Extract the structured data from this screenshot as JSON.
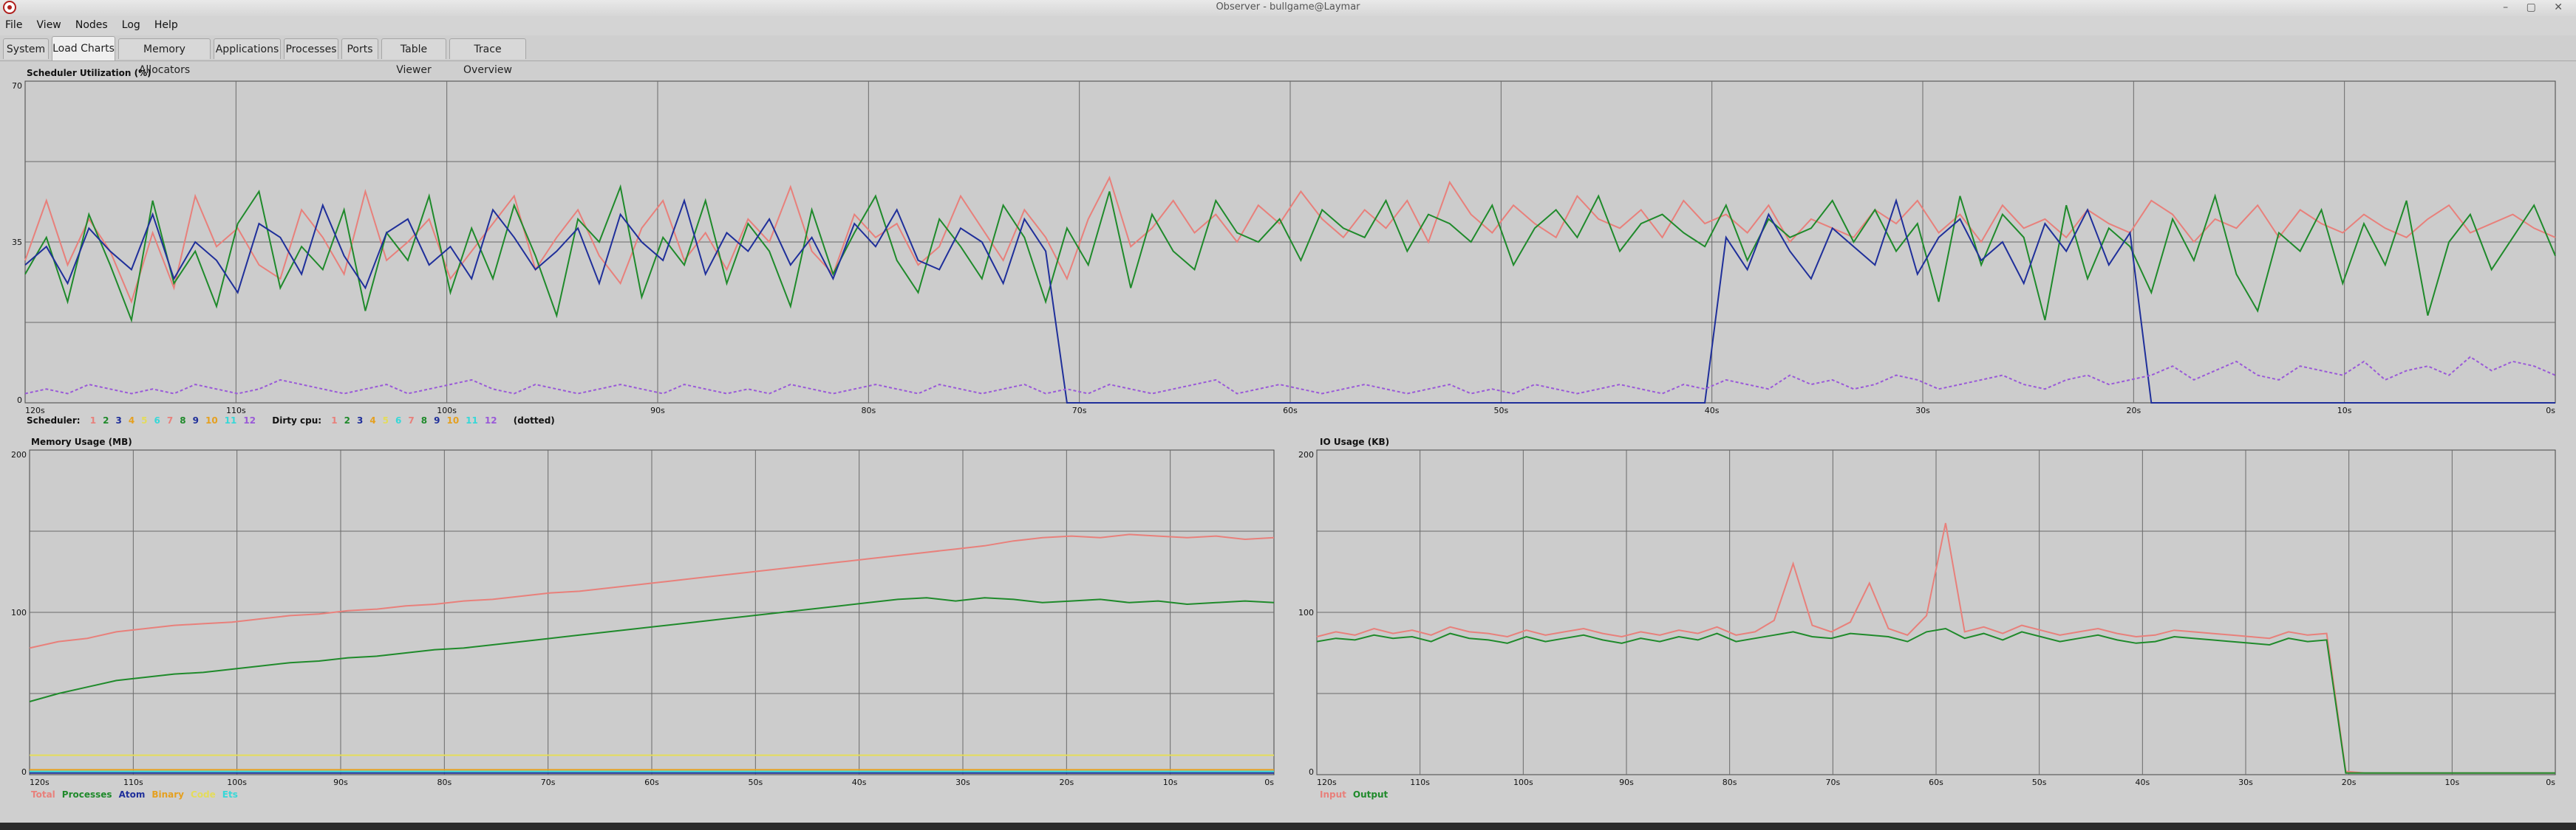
{
  "window": {
    "title": "Observer - bullgame@Laymar",
    "controls": "– ▢ ✕"
  },
  "menu": [
    "File",
    "View",
    "Nodes",
    "Log",
    "Help"
  ],
  "tabs": [
    "System",
    "Load Charts",
    "Memory Allocators",
    "Applications",
    "Processes",
    "Ports",
    "Table Viewer",
    "Trace Overview"
  ],
  "active_tab": "Load Charts",
  "colors": {
    "red": "#e8807b",
    "green": "#1f8a2b",
    "blue": "#1f2f9a",
    "orange": "#e5a020",
    "yellow": "#e4dc5a",
    "cyan": "#37d8d8",
    "grid": "#555555",
    "plot_bg": "#cccccc"
  },
  "scheduler_chart": {
    "chart_data": {
      "type": "line",
      "title": "Scheduler Utilization (%)",
      "ylim": [
        0,
        70
      ],
      "y_ticks": [
        "70",
        "35",
        "0"
      ],
      "x_ticks": [
        "120s",
        "110s",
        "100s",
        "90s",
        "80s",
        "70s",
        "60s",
        "50s",
        "40s",
        "30s",
        "20s",
        "10s",
        "0s"
      ],
      "xlim": [
        -120,
        0
      ],
      "series": [
        {
          "name": "1",
          "color": "#e8807b",
          "values": [
            31,
            44,
            30,
            40,
            33,
            22,
            37,
            25,
            45,
            34,
            38,
            30,
            27,
            42,
            36,
            28,
            46,
            31,
            35,
            40,
            27,
            33,
            39,
            45,
            29,
            36,
            42,
            32,
            26,
            38,
            44,
            31,
            37,
            29,
            40,
            35,
            47,
            33,
            28,
            41,
            36,
            39,
            30,
            34,
            45,
            38,
            31,
            42,
            36,
            27,
            40,
            49,
            34,
            38,
            44,
            37,
            41,
            35,
            43,
            39,
            46,
            40,
            36,
            42,
            38,
            44,
            35,
            48,
            41,
            37,
            43,
            39,
            36,
            45,
            40,
            38,
            42,
            36,
            44,
            39,
            41,
            37,
            43,
            35,
            40,
            38,
            36,
            42,
            39,
            44,
            37,
            41,
            35,
            43,
            38,
            40,
            36,
            42,
            39,
            37,
            44,
            41,
            35,
            40,
            38,
            43,
            36,
            42,
            39,
            37,
            41,
            38,
            36,
            40,
            43,
            37,
            39,
            41,
            38,
            36
          ]
        },
        {
          "name": "2",
          "color": "#1f8a2b",
          "values": [
            28,
            36,
            22,
            41,
            30,
            18,
            44,
            26,
            33,
            21,
            39,
            46,
            25,
            34,
            29,
            42,
            20,
            37,
            31,
            45,
            24,
            38,
            27,
            43,
            32,
            19,
            40,
            35,
            47,
            23,
            36,
            30,
            44,
            26,
            39,
            33,
            21,
            42,
            28,
            37,
            45,
            31,
            24,
            40,
            34,
            27,
            43,
            36,
            22,
            38,
            30,
            46,
            25,
            41,
            33,
            29,
            44,
            37,
            35,
            40,
            31,
            42,
            38,
            36,
            44,
            33,
            41,
            39,
            35,
            43,
            30,
            38,
            42,
            36,
            45,
            33,
            39,
            41,
            37,
            34,
            43,
            31,
            40,
            36,
            38,
            44,
            35,
            42,
            33,
            39,
            22,
            45,
            30,
            41,
            36,
            18,
            43,
            27,
            38,
            34,
            24,
            40,
            31,
            45,
            28,
            20,
            37,
            33,
            42,
            26,
            39,
            30,
            44,
            19,
            35,
            41,
            29,
            36,
            43,
            32
          ]
        },
        {
          "name": "3",
          "color": "#1f2f9a",
          "values": [
            30,
            34,
            26,
            38,
            33,
            29,
            41,
            27,
            35,
            31,
            24,
            39,
            36,
            28,
            43,
            32,
            25,
            37,
            40,
            30,
            34,
            27,
            42,
            36,
            29,
            33,
            38,
            26,
            41,
            35,
            31,
            44,
            28,
            37,
            33,
            40,
            30,
            36,
            27,
            39,
            34,
            42,
            31,
            29,
            38,
            35,
            26,
            40,
            33,
            0,
            0,
            0,
            0,
            0,
            0,
            0,
            0,
            0,
            0,
            0,
            0,
            0,
            0,
            0,
            0,
            0,
            0,
            0,
            0,
            0,
            0,
            0,
            0,
            0,
            0,
            0,
            0,
            0,
            0,
            0,
            36,
            29,
            41,
            33,
            27,
            38,
            34,
            30,
            44,
            28,
            36,
            40,
            31,
            35,
            26,
            39,
            33,
            42,
            30,
            37,
            0,
            0,
            0,
            0,
            0,
            0,
            0,
            0,
            0,
            0,
            0,
            0,
            0,
            0,
            0,
            0,
            0,
            0,
            0,
            0
          ]
        },
        {
          "name": "12",
          "color": "#9a5ad8",
          "values": [
            2,
            3,
            2,
            4,
            3,
            2,
            3,
            2,
            4,
            3,
            2,
            3,
            5,
            4,
            3,
            2,
            3,
            4,
            2,
            3,
            4,
            5,
            3,
            2,
            4,
            3,
            2,
            3,
            4,
            3,
            2,
            4,
            3,
            2,
            3,
            2,
            4,
            3,
            2,
            3,
            4,
            3,
            2,
            4,
            3,
            2,
            3,
            4,
            2,
            3,
            2,
            4,
            3,
            2,
            3,
            4,
            5,
            2,
            3,
            4,
            3,
            2,
            3,
            4,
            3,
            2,
            3,
            4,
            2,
            3,
            2,
            4,
            3,
            2,
            3,
            4,
            3,
            2,
            4,
            3,
            5,
            4,
            3,
            6,
            4,
            5,
            3,
            4,
            6,
            5,
            3,
            4,
            5,
            6,
            4,
            3,
            5,
            6,
            4,
            5,
            6,
            8,
            5,
            7,
            9,
            6,
            5,
            8,
            7,
            6,
            9,
            5,
            7,
            8,
            6,
            10,
            7,
            9,
            8,
            6
          ]
        }
      ]
    },
    "legend": {
      "scheduler_label": "Scheduler:",
      "scheduler_items": [
        {
          "label": "1",
          "color": "#e8807b"
        },
        {
          "label": "2",
          "color": "#1f8a2b"
        },
        {
          "label": "3",
          "color": "#1f2f9a"
        },
        {
          "label": "4",
          "color": "#e5a020"
        },
        {
          "label": "5",
          "color": "#e4dc5a"
        },
        {
          "label": "6",
          "color": "#37d8d8"
        },
        {
          "label": "7",
          "color": "#e8807b"
        },
        {
          "label": "8",
          "color": "#1f8a2b"
        },
        {
          "label": "9",
          "color": "#1f2f9a"
        },
        {
          "label": "10",
          "color": "#e5a020"
        },
        {
          "label": "11",
          "color": "#37d8d8"
        },
        {
          "label": "12",
          "color": "#9a5ad8"
        }
      ],
      "dirty_label": "Dirty cpu:",
      "dirty_items": [
        {
          "label": "1",
          "color": "#e8807b"
        },
        {
          "label": "2",
          "color": "#1f8a2b"
        },
        {
          "label": "3",
          "color": "#1f2f9a"
        },
        {
          "label": "4",
          "color": "#e5a020"
        },
        {
          "label": "5",
          "color": "#e4dc5a"
        },
        {
          "label": "6",
          "color": "#37d8d8"
        },
        {
          "label": "7",
          "color": "#e8807b"
        },
        {
          "label": "8",
          "color": "#1f8a2b"
        },
        {
          "label": "9",
          "color": "#1f2f9a"
        },
        {
          "label": "10",
          "color": "#e5a020"
        },
        {
          "label": "11",
          "color": "#37d8d8"
        },
        {
          "label": "12",
          "color": "#9a5ad8"
        }
      ],
      "dotted_note": "(dotted)"
    }
  },
  "memory_chart": {
    "chart_data": {
      "type": "line",
      "title": "Memory Usage (MB)",
      "ylim": [
        0,
        200
      ],
      "y_ticks": [
        "200",
        "100",
        "0"
      ],
      "x_ticks": [
        "120s",
        "110s",
        "100s",
        "90s",
        "80s",
        "70s",
        "60s",
        "50s",
        "40s",
        "30s",
        "20s",
        "10s",
        "0s"
      ],
      "xlim": [
        -120,
        0
      ],
      "series": [
        {
          "name": "Total",
          "color": "#e8807b",
          "values": [
            78,
            82,
            84,
            88,
            90,
            92,
            93,
            94,
            96,
            98,
            99,
            101,
            102,
            104,
            105,
            107,
            108,
            110,
            112,
            113,
            115,
            117,
            119,
            121,
            123,
            125,
            127,
            129,
            131,
            133,
            135,
            137,
            139,
            141,
            144,
            146,
            147,
            146,
            148,
            147,
            146,
            147,
            145,
            146
          ]
        },
        {
          "name": "Processes",
          "color": "#1f8a2b",
          "values": [
            45,
            50,
            54,
            58,
            60,
            62,
            63,
            65,
            67,
            69,
            70,
            72,
            73,
            75,
            77,
            78,
            80,
            82,
            84,
            86,
            88,
            90,
            92,
            94,
            96,
            98,
            100,
            102,
            104,
            106,
            108,
            109,
            107,
            109,
            108,
            106,
            107,
            108,
            106,
            107,
            105,
            106,
            107,
            106
          ]
        },
        {
          "name": "Atom",
          "color": "#1f2f9a",
          "values": [
            1,
            1,
            1,
            1,
            1,
            1,
            1,
            1,
            1,
            1,
            1,
            1,
            1,
            1,
            1,
            1,
            1,
            1,
            1,
            1,
            1,
            1,
            1,
            1,
            1,
            1,
            1,
            1,
            1,
            1,
            1,
            1,
            1,
            1,
            1,
            1,
            1,
            1,
            1,
            1,
            1,
            1,
            1,
            1
          ]
        },
        {
          "name": "Binary",
          "color": "#e5a020",
          "values": [
            3,
            3,
            3,
            3,
            3,
            3,
            3,
            3,
            3,
            3,
            3,
            3,
            3,
            3,
            3,
            3,
            3,
            3,
            3,
            3,
            3,
            3,
            3,
            3,
            3,
            3,
            3,
            3,
            3,
            3,
            3,
            3,
            3,
            3,
            3,
            3,
            3,
            3,
            3,
            3,
            3,
            3,
            3,
            3
          ]
        },
        {
          "name": "Code",
          "color": "#e4dc5a",
          "values": [
            12,
            12,
            12,
            12,
            12,
            12,
            12,
            12,
            12,
            12,
            12,
            12,
            12,
            12,
            12,
            12,
            12,
            12,
            12,
            12,
            12,
            12,
            12,
            12,
            12,
            12,
            12,
            12,
            12,
            12,
            12,
            12,
            12,
            12,
            12,
            12,
            12,
            12,
            12,
            12,
            12,
            12,
            12,
            12
          ]
        },
        {
          "name": "Ets",
          "color": "#37d8d8",
          "values": [
            2,
            2,
            2,
            2,
            2,
            2,
            2,
            2,
            2,
            2,
            2,
            2,
            2,
            2,
            2,
            2,
            2,
            2,
            2,
            2,
            2,
            2,
            2,
            2,
            2,
            2,
            2,
            2,
            2,
            2,
            2,
            2,
            2,
            2,
            2,
            2,
            2,
            2,
            2,
            2,
            2,
            2,
            2,
            2
          ]
        }
      ]
    },
    "legend": [
      {
        "label": "Total",
        "color": "#e8807b"
      },
      {
        "label": "Processes",
        "color": "#1f8a2b"
      },
      {
        "label": "Atom",
        "color": "#1f2f9a"
      },
      {
        "label": "Binary",
        "color": "#e5a020"
      },
      {
        "label": "Code",
        "color": "#e4dc5a"
      },
      {
        "label": "Ets",
        "color": "#37d8d8"
      }
    ]
  },
  "io_chart": {
    "chart_data": {
      "type": "line",
      "title": "IO Usage (KB)",
      "ylim": [
        0,
        200
      ],
      "y_ticks": [
        "200",
        "100",
        "0"
      ],
      "x_ticks": [
        "120s",
        "110s",
        "100s",
        "90s",
        "80s",
        "70s",
        "60s",
        "50s",
        "40s",
        "30s",
        "20s",
        "10s",
        "0s"
      ],
      "xlim": [
        -120,
        0
      ],
      "series": [
        {
          "name": "Input",
          "color": "#e8807b",
          "values": [
            85,
            88,
            86,
            90,
            87,
            89,
            86,
            91,
            88,
            87,
            85,
            89,
            86,
            88,
            90,
            87,
            85,
            88,
            86,
            89,
            87,
            91,
            86,
            88,
            95,
            130,
            92,
            88,
            94,
            118,
            90,
            86,
            98,
            155,
            88,
            91,
            87,
            92,
            89,
            86,
            88,
            90,
            87,
            85,
            86,
            89,
            88,
            87,
            86,
            85,
            84,
            88,
            86,
            87,
            2,
            1,
            1,
            1,
            1,
            1,
            1,
            1,
            1,
            1,
            1,
            1
          ]
        },
        {
          "name": "Output",
          "color": "#1f8a2b",
          "values": [
            82,
            84,
            83,
            86,
            84,
            85,
            82,
            87,
            84,
            83,
            81,
            85,
            82,
            84,
            86,
            83,
            81,
            84,
            82,
            85,
            83,
            87,
            82,
            84,
            86,
            88,
            85,
            84,
            87,
            86,
            85,
            82,
            88,
            90,
            84,
            87,
            83,
            88,
            85,
            82,
            84,
            86,
            83,
            81,
            82,
            85,
            84,
            83,
            82,
            81,
            80,
            84,
            82,
            83,
            1,
            1,
            1,
            1,
            1,
            1,
            1,
            1,
            1,
            1,
            1,
            1
          ]
        }
      ]
    },
    "legend": [
      {
        "label": "Input",
        "color": "#e8807b"
      },
      {
        "label": "Output",
        "color": "#1f8a2b"
      }
    ]
  }
}
